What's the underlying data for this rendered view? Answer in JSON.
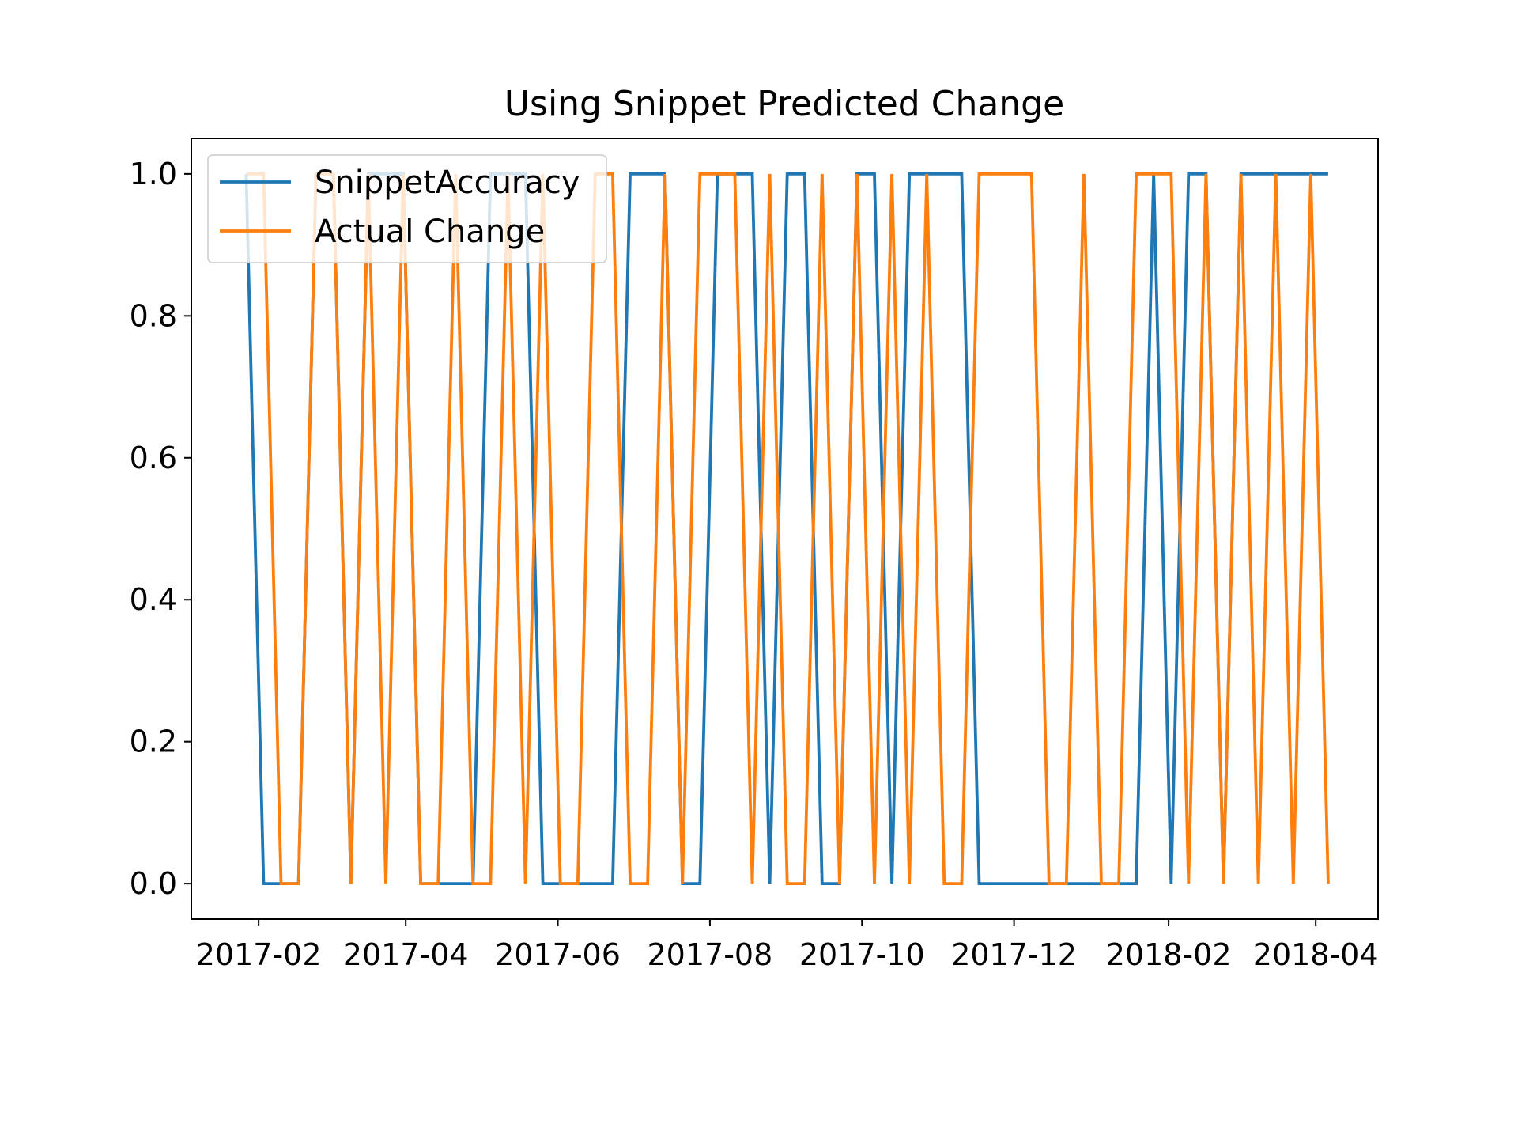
{
  "colors": {
    "background": "#ffffff",
    "axes": "#000000",
    "snippet": "#1f77b4",
    "actual": "#ff7f0e",
    "legend_frame": "#cccccc"
  },
  "chart_data": {
    "type": "line",
    "title": "Using Snippet Predicted Change",
    "xlabel": "",
    "ylabel": "",
    "x_axis": {
      "scale": "date",
      "range": [
        "2017-01-05",
        "2018-04-26"
      ],
      "ticks": [
        "2017-02",
        "2017-04",
        "2017-06",
        "2017-08",
        "2017-10",
        "2017-12",
        "2018-02",
        "2018-04"
      ]
    },
    "y_axis": {
      "range": [
        -0.05,
        1.05
      ],
      "ticks": [
        "0.0",
        "0.2",
        "0.4",
        "0.6",
        "0.8",
        "1.0"
      ]
    },
    "grid": false,
    "legend": {
      "placement": "upper-left"
    },
    "x": [
      "2017-01-27",
      "2017-02-03",
      "2017-02-10",
      "2017-02-17",
      "2017-02-24",
      "2017-03-03",
      "2017-03-10",
      "2017-03-17",
      "2017-03-24",
      "2017-03-31",
      "2017-04-07",
      "2017-04-14",
      "2017-04-21",
      "2017-04-28",
      "2017-05-05",
      "2017-05-12",
      "2017-05-19",
      "2017-05-26",
      "2017-06-02",
      "2017-06-09",
      "2017-06-16",
      "2017-06-23",
      "2017-06-30",
      "2017-07-07",
      "2017-07-14",
      "2017-07-21",
      "2017-07-28",
      "2017-08-04",
      "2017-08-11",
      "2017-08-18",
      "2017-08-25",
      "2017-09-01",
      "2017-09-08",
      "2017-09-15",
      "2017-09-22",
      "2017-09-29",
      "2017-10-06",
      "2017-10-13",
      "2017-10-20",
      "2017-10-27",
      "2017-11-03",
      "2017-11-10",
      "2017-11-17",
      "2017-11-24",
      "2017-12-01",
      "2017-12-08",
      "2017-12-15",
      "2017-12-22",
      "2017-12-29",
      "2018-01-05",
      "2018-01-12",
      "2018-01-19",
      "2018-01-26",
      "2018-02-02",
      "2018-02-09",
      "2018-02-16",
      "2018-02-23",
      "2018-03-02",
      "2018-03-09",
      "2018-03-16",
      "2018-03-23",
      "2018-03-30",
      "2018-04-06"
    ],
    "series": [
      {
        "name": "SnippetAccuracy",
        "values": [
          1,
          0,
          0,
          0,
          1,
          1,
          0,
          1,
          1,
          1,
          0,
          0,
          0,
          0,
          1,
          1,
          1,
          0,
          0,
          0,
          0,
          0,
          1,
          1,
          1,
          0,
          0,
          1,
          1,
          1,
          0,
          1,
          1,
          0,
          0,
          1,
          1,
          0,
          1,
          1,
          1,
          1,
          0,
          0,
          0,
          0,
          0,
          0,
          0,
          0,
          0,
          0,
          1,
          0,
          1,
          1,
          0,
          1,
          1,
          1,
          1,
          1,
          1
        ]
      },
      {
        "name": "Actual Change",
        "values": [
          1,
          1,
          0,
          0,
          1,
          1,
          0,
          1,
          0,
          1,
          0,
          0,
          1,
          0,
          0,
          1,
          0,
          1,
          0,
          0,
          1,
          1,
          0,
          0,
          1,
          0,
          1,
          1,
          1,
          0,
          1,
          0,
          0,
          1,
          0,
          1,
          0,
          1,
          0,
          1,
          0,
          0,
          1,
          1,
          1,
          1,
          0,
          0,
          1,
          0,
          0,
          1,
          1,
          1,
          0,
          1,
          0,
          1,
          0,
          1,
          0,
          1,
          0
        ]
      }
    ]
  }
}
